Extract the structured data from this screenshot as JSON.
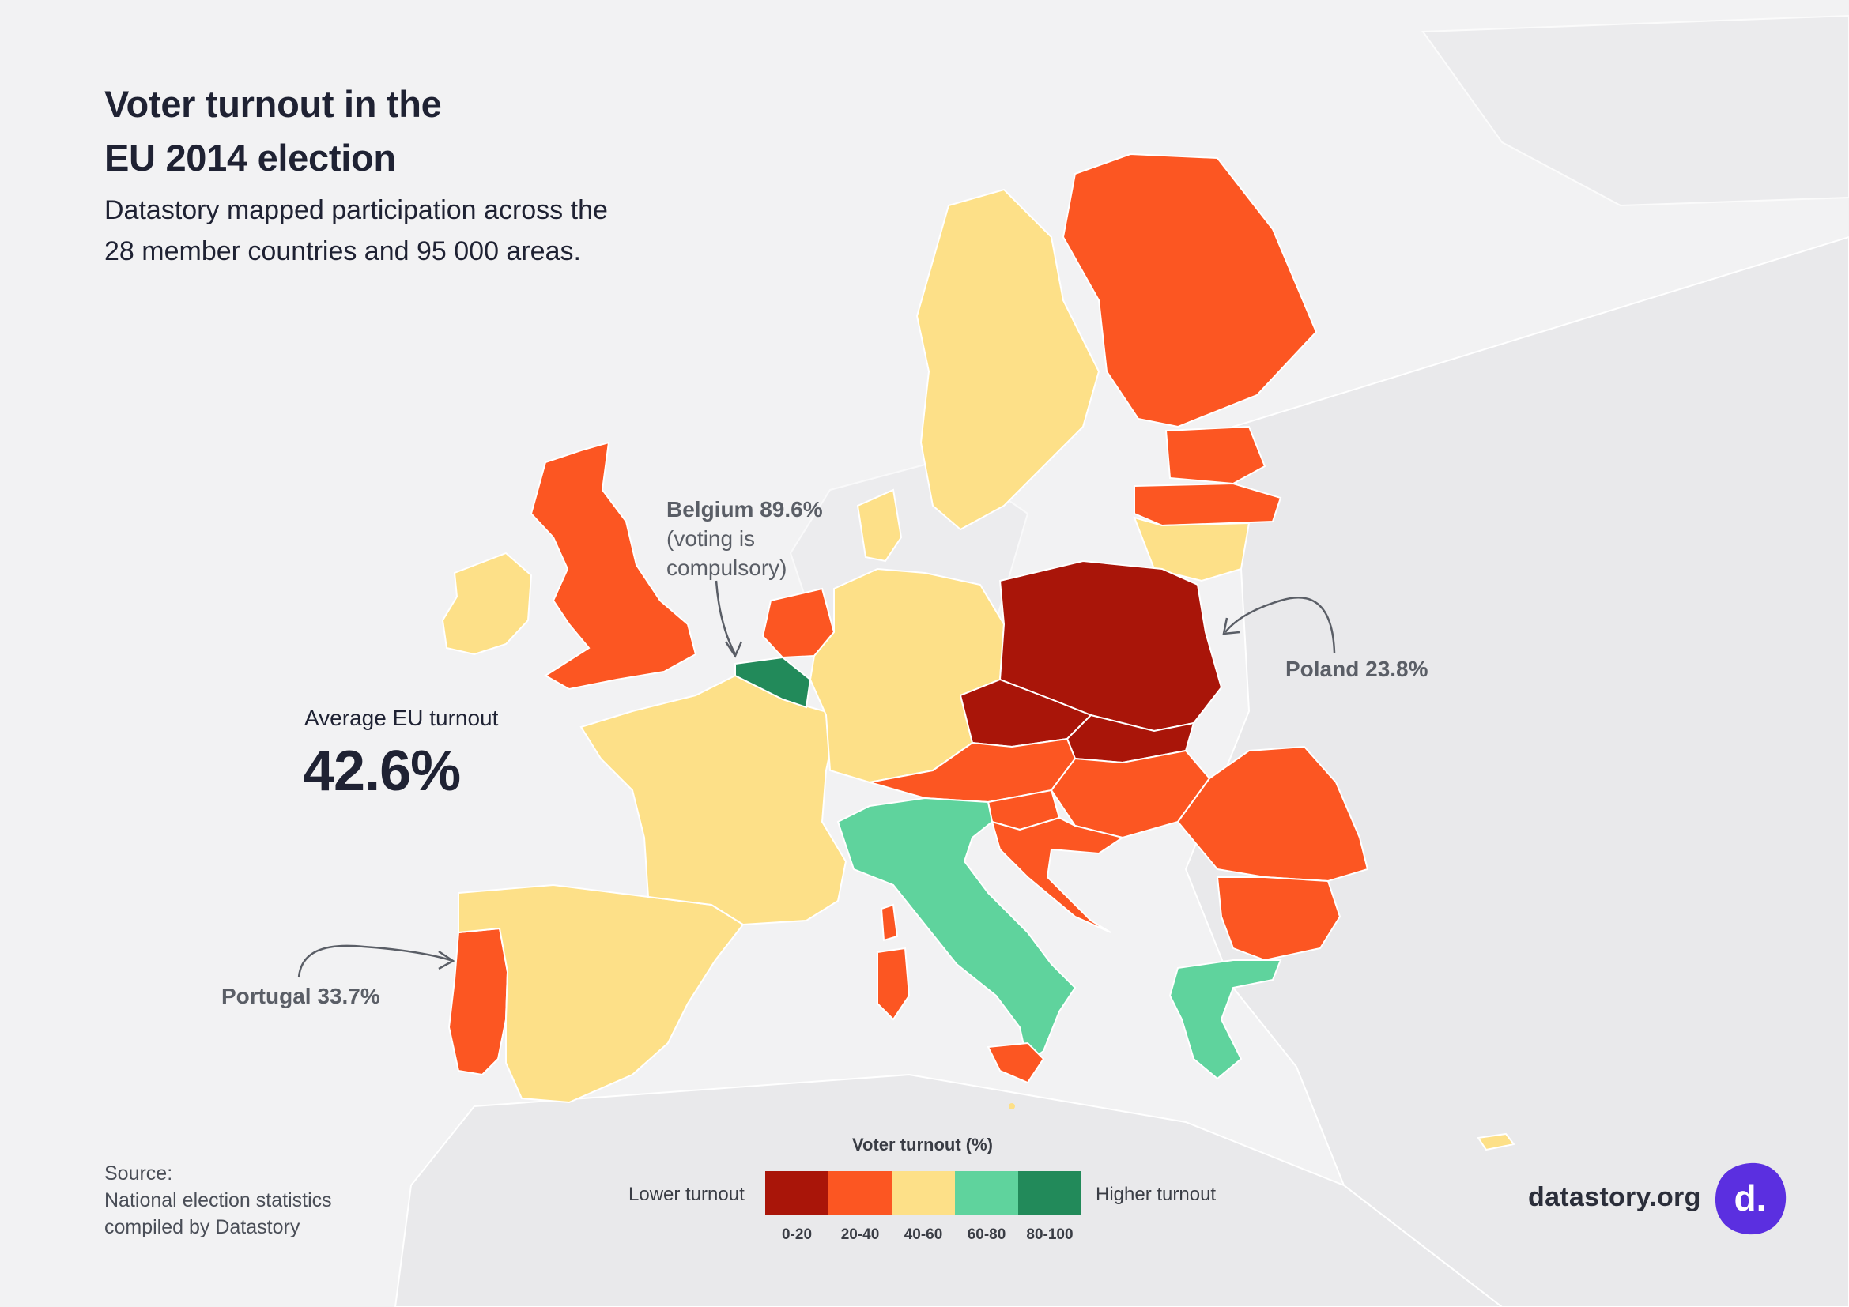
{
  "title_line1": "Voter turnout in the",
  "title_line2": "EU 2014 election",
  "subtitle_line1": "Datastory mapped participation across the",
  "subtitle_line2": "28 member countries and 95 000 areas.",
  "average": {
    "label": "Average EU turnout",
    "value": "42.6%"
  },
  "callouts": {
    "belgium_line1": "Belgium 89.6%",
    "belgium_line2": "(voting is",
    "belgium_line3": "compulsory)",
    "poland": "Poland 23.8%",
    "portugal": "Portugal 33.7%"
  },
  "source": {
    "line1": "Source:",
    "line2": "National election statistics",
    "line3": "compiled by Datastory"
  },
  "legend": {
    "title": "Voter turnout (%)",
    "low_label": "Lower turnout",
    "high_label": "Higher turnout",
    "bins": [
      "0-20",
      "20-40",
      "40-60",
      "60-80",
      "80-100"
    ],
    "colors": [
      "#a91509",
      "#fc5622",
      "#fde088",
      "#5fd39d",
      "#228a5a"
    ]
  },
  "brand": {
    "site": "datastory.org",
    "logo_letter": "d.",
    "color": "#5b2fe0"
  },
  "map_colors": {
    "sea": "#f2f2f3",
    "land_outside": "#e8e8ea",
    "border": "#ffffff"
  }
}
